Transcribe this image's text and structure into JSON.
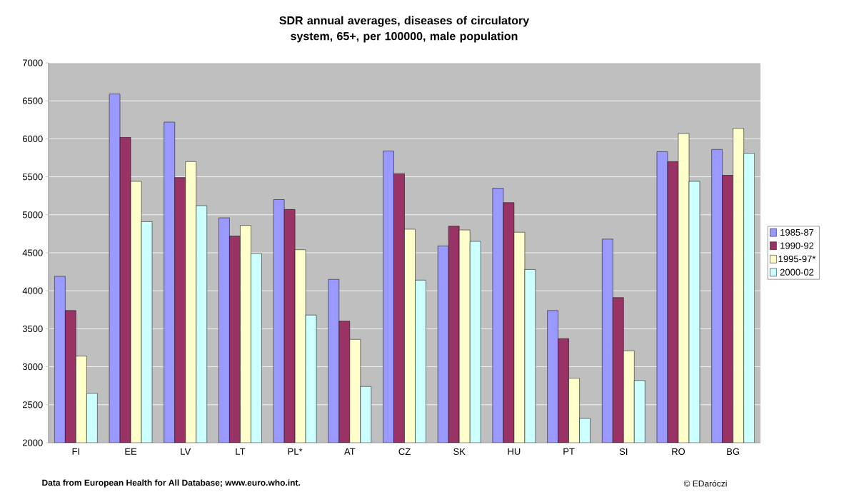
{
  "chart_data": {
    "type": "bar",
    "title": "SDR annual averages, diseases of circulatory system, 65+, per 100000, male population",
    "categories": [
      "FI",
      "EE",
      "LV",
      "LT",
      "PL*",
      "AT",
      "CZ",
      "SK",
      "HU",
      "PT",
      "SI",
      "RO",
      "BG"
    ],
    "series": [
      {
        "name": "1985-87",
        "color": "#9999ff",
        "values": [
          4190,
          6590,
          6220,
          4960,
          5200,
          4150,
          5840,
          4590,
          5350,
          3740,
          4680,
          5830,
          5860
        ]
      },
      {
        "name": "1990-92",
        "color": "#993366",
        "values": [
          3740,
          6020,
          5490,
          4720,
          5070,
          3600,
          5540,
          4850,
          5160,
          3370,
          3910,
          5700,
          5520
        ]
      },
      {
        "name": "1995-97*",
        "color": "#ffffcc",
        "values": [
          3140,
          5440,
          5700,
          4860,
          4540,
          3360,
          4810,
          4800,
          4770,
          2850,
          3210,
          6070,
          6140
        ]
      },
      {
        "name": "2000-02",
        "color": "#ccffff",
        "values": [
          2650,
          4910,
          5120,
          4490,
          3680,
          2740,
          4140,
          4650,
          4280,
          2320,
          2820,
          5440,
          5810
        ]
      }
    ],
    "ylim": [
      2000,
      7000
    ],
    "yticks": [
      2000,
      2500,
      3000,
      3500,
      4000,
      4500,
      5000,
      5500,
      6000,
      6500,
      7000
    ],
    "grid": "y",
    "legend": "right",
    "annotations": [
      "Data from European Health for All Database; www.euro.who.int.",
      "© EDaróczi"
    ]
  }
}
